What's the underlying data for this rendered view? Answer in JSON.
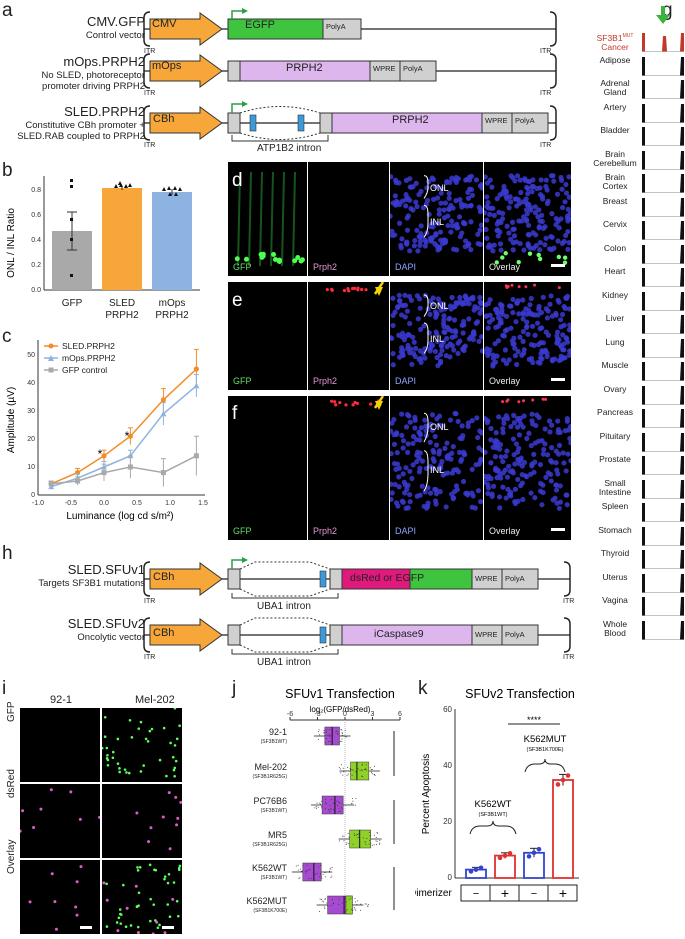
{
  "panels": {
    "a": "a",
    "b": "b",
    "c": "c",
    "d": "d",
    "e": "e",
    "f": "f",
    "g": "g",
    "h": "h",
    "i": "i",
    "j": "j",
    "k": "k"
  },
  "itr": "ITR",
  "constructs_a": [
    {
      "name": "CMV.GFP",
      "sub": "Control vector",
      "promoter": "CMV",
      "gene": "EGFP",
      "polya": "PolyA"
    },
    {
      "name": "mOps.PRPH2",
      "sub": "No SLED, photoreceptor promoter driving PRPH2",
      "promoter": "mOps",
      "gene": "PRPH2",
      "wpre": "WPRE",
      "polya": "PolyA"
    },
    {
      "name": "SLED.PRPH2",
      "sub": "Constitutive CBh promoter + SLED.RAB coupled to PRPH2",
      "promoter": "CBh",
      "gene": "PRPH2",
      "wpre": "WPRE",
      "polya": "PolyA",
      "intron": "ATP1B2 intron"
    }
  ],
  "bar_b": {
    "ylabel": "ONL / INL Ratio",
    "yticks": [
      "0.0",
      "0.2",
      "0.4",
      "0.6",
      "0.8"
    ],
    "categories": [
      "GFP",
      "SLED\nPRPH2",
      "mOps\nPRPH2"
    ],
    "cat1": [
      "GFP"
    ],
    "cat2": [
      "SLED",
      "PRPH2"
    ],
    "cat3": [
      "mOps",
      "PRPH2"
    ]
  },
  "chart_data": [
    {
      "type": "bar",
      "ylabel": "ONL / INL Ratio",
      "categories": [
        "GFP",
        "SLED PRPH2",
        "mOps PRPH2"
      ],
      "values": [
        0.47,
        0.82,
        0.79
      ],
      "ylim": [
        0,
        0.9
      ],
      "colors": [
        "#a9a9a9",
        "#f7a63a",
        "#8db3e2"
      ]
    },
    {
      "type": "line",
      "xlabel": "Luminance (log cd s/m²)",
      "ylabel": "Amplitude (µV)",
      "ylim": [
        0,
        55
      ],
      "xlim": [
        -1,
        1.5
      ],
      "x": [
        -0.8,
        -0.4,
        0.0,
        0.4,
        0.9,
        1.4
      ],
      "series": [
        {
          "name": "SLED.PRPH2",
          "values": [
            4,
            8,
            14,
            21,
            34,
            45
          ],
          "color": "#f28c28"
        },
        {
          "name": "mOps.PRPH2",
          "values": [
            3,
            6,
            10,
            14,
            29,
            39
          ],
          "color": "#8db3e2"
        },
        {
          "name": "GFP control",
          "values": [
            4,
            5,
            8,
            10,
            8,
            14
          ],
          "color": "#a9a9a9"
        }
      ]
    },
    {
      "type": "bar",
      "title": "SFUv2 Transfection",
      "ylabel": "Percent Apoptosis",
      "ylim": [
        0,
        60
      ],
      "values": [
        3,
        8,
        9,
        35
      ]
    }
  ],
  "line_c": {
    "ylabel": "Amplitude (µV)",
    "xlabel": "Luminance (log cd s/m²)",
    "yticks": [
      "0",
      "10",
      "20",
      "30",
      "40",
      "50"
    ],
    "xticks": [
      "-1.0",
      "-0.5",
      "0.0",
      "0.5",
      "1.0",
      "1.5"
    ],
    "legend": [
      "SLED.PRPH2",
      "mOps.PRPH2",
      "GFP control"
    ],
    "star": "*"
  },
  "micro_labels": {
    "gfp": "GFP",
    "prph2": "Prph2",
    "dapi": "DAPI",
    "overlay": "Overlay",
    "onl": "ONL",
    "inl": "INL"
  },
  "gtex": {
    "tissues": [
      "SF3B1MUT Cancer",
      "Adipose",
      "Adrenal Gland",
      "Artery",
      "Bladder",
      "Brain Cerebellum",
      "Brain Cortex",
      "Breast",
      "Cervix",
      "Colon",
      "Heart",
      "Kidney",
      "Liver",
      "Lung",
      "Muscle",
      "Ovary",
      "Pancreas",
      "Pituitary",
      "Prostate",
      "Small Intestine",
      "Spleen",
      "Stomach",
      "Thyroid",
      "Uterus",
      "Vagina",
      "Whole Blood"
    ],
    "cancer_label": "SF3B1",
    "cancer_sup": "MUT",
    "cancer_label2": "Cancer"
  },
  "constructs_h": [
    {
      "name": "SLED.SFUv1",
      "sub": "Targets SF3B1 mutations",
      "promoter": "CBh",
      "gene": "dsRed or EGFP",
      "wpre": "WPRE",
      "polya": "PolyA",
      "intron": "UBA1 intron"
    },
    {
      "name": "SLED.SFUv2",
      "sub": "Oncolytic vector",
      "promoter": "CBh",
      "gene": "iCaspase9",
      "wpre": "WPRE",
      "polya": "PolyA",
      "intron": "UBA1 intron"
    }
  ],
  "panel_i": {
    "col1": "92-1",
    "col2": "Mel-202",
    "rows": [
      "GFP",
      "dsRed",
      "Overlay"
    ]
  },
  "panel_j": {
    "title": "SFUv1 Transfection",
    "xlabel": "log₂(GFP/dsRed)",
    "xticks": [
      "-6",
      "-3",
      "0",
      "3",
      "6"
    ],
    "rows": [
      {
        "name": "92-1",
        "geno": "(SF3B1WT)"
      },
      {
        "name": "Mel-202",
        "geno": "(SF3B1R625G)"
      },
      {
        "name": "PC76B6",
        "geno": "(SF3B1WT)"
      },
      {
        "name": "MR5",
        "geno": "(SF3B1R625G)"
      },
      {
        "name": "K562WT",
        "geno": "(SF3B1WT)"
      },
      {
        "name": "K562MUT",
        "geno": "(SF3B1K700E)"
      }
    ],
    "sig": "****"
  },
  "panel_k": {
    "title": "SFUv2 Transfection",
    "ylabel": "Percent Apoptosis",
    "yticks": [
      "0",
      "20",
      "40",
      "60"
    ],
    "label_wt": "K562WT",
    "sub_wt": "(SF3B1WT)",
    "label_mut": "K562MUT",
    "sub_mut": "(SF3B1K700E)",
    "dimerizer": "Dimerizer",
    "minus": "−",
    "plus": "+",
    "sig": "****"
  }
}
